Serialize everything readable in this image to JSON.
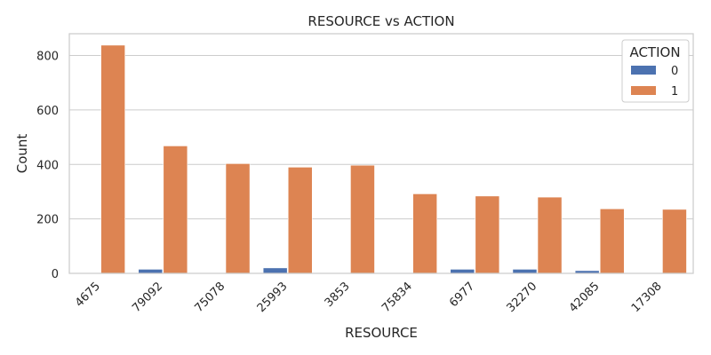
{
  "chart_data": {
    "type": "bar",
    "title": "RESOURCE vs ACTION",
    "xlabel": "RESOURCE",
    "ylabel": "Count",
    "ylim": [
      0,
      880
    ],
    "yticks": [
      0,
      200,
      400,
      600,
      800
    ],
    "grid": true,
    "categories": [
      "4675",
      "79092",
      "75078",
      "25993",
      "3853",
      "75834",
      "6977",
      "32270",
      "42085",
      "17308"
    ],
    "series": [
      {
        "name": "0",
        "color": "#4c72b0",
        "values": [
          0,
          15,
          0,
          20,
          0,
          0,
          15,
          15,
          10,
          0
        ]
      },
      {
        "name": "1",
        "color": "#dd8452",
        "values": [
          838,
          468,
          403,
          390,
          397,
          292,
          284,
          280,
          237,
          235
        ]
      }
    ],
    "legend": {
      "title": "ACTION",
      "placement": "top-right"
    }
  }
}
